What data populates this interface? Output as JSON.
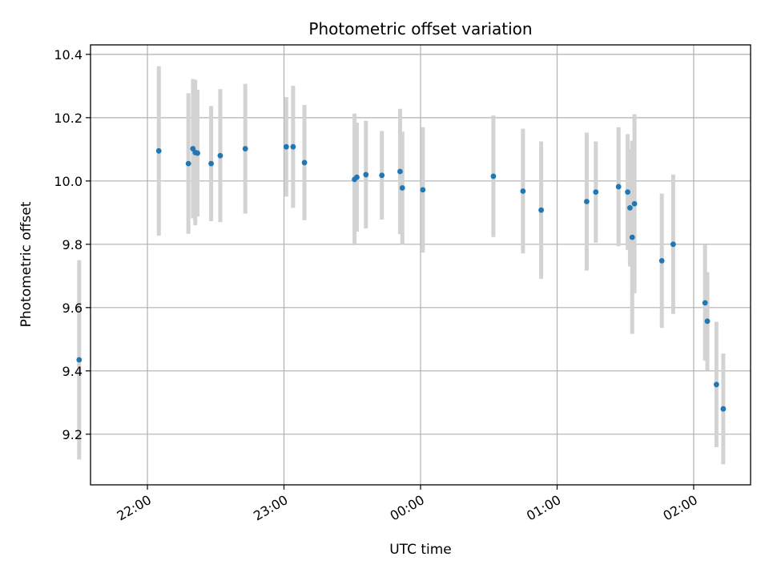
{
  "chart_data": {
    "type": "scatter",
    "title": "Photometric offset variation",
    "xlabel": "UTC time",
    "ylabel": "Photometric offset",
    "x_tick_labels": [
      "22:00",
      "23:00",
      "00:00",
      "01:00",
      "02:00"
    ],
    "y_tick_labels": [
      "9.2",
      "9.4",
      "9.6",
      "9.8",
      "10.0",
      "10.2",
      "10.4"
    ],
    "x_ticks": [
      "22:00",
      "23:00",
      "00:00",
      "01:00",
      "02:00"
    ],
    "y_ticks": [
      9.2,
      9.4,
      9.6,
      9.8,
      10.0,
      10.2,
      10.4
    ],
    "xlim": [
      "21:35",
      "02:25"
    ],
    "ylim": [
      9.04,
      10.43
    ],
    "grid": true,
    "marker_color": "#1f77b4",
    "errorbar_color": "#d3d3d3",
    "points": [
      {
        "x": "21:30",
        "y": 9.435,
        "yerr": 0.315
      },
      {
        "x": "22:05",
        "y": 10.095,
        "yerr": 0.268
      },
      {
        "x": "22:18",
        "y": 10.055,
        "yerr": 0.222
      },
      {
        "x": "22:20",
        "y": 10.102,
        "yerr": 0.22
      },
      {
        "x": "22:21",
        "y": 10.09,
        "yerr": 0.23
      },
      {
        "x": "22:22",
        "y": 10.088,
        "yerr": 0.2
      },
      {
        "x": "22:28",
        "y": 10.055,
        "yerr": 0.182
      },
      {
        "x": "22:32",
        "y": 10.08,
        "yerr": 0.21
      },
      {
        "x": "22:43",
        "y": 10.102,
        "yerr": 0.205
      },
      {
        "x": "23:01",
        "y": 10.108,
        "yerr": 0.157
      },
      {
        "x": "23:04",
        "y": 10.108,
        "yerr": 0.193
      },
      {
        "x": "23:09",
        "y": 10.058,
        "yerr": 0.182
      },
      {
        "x": "23:31",
        "y": 10.005,
        "yerr": 0.208
      },
      {
        "x": "23:32",
        "y": 10.012,
        "yerr": 0.172
      },
      {
        "x": "23:36",
        "y": 10.02,
        "yerr": 0.17
      },
      {
        "x": "23:43",
        "y": 10.018,
        "yerr": 0.14
      },
      {
        "x": "23:51",
        "y": 10.03,
        "yerr": 0.198
      },
      {
        "x": "23:52",
        "y": 9.978,
        "yerr": 0.178
      },
      {
        "x": "00:01",
        "y": 9.972,
        "yerr": 0.198
      },
      {
        "x": "00:32",
        "y": 10.015,
        "yerr": 0.192
      },
      {
        "x": "00:45",
        "y": 9.968,
        "yerr": 0.197
      },
      {
        "x": "00:53",
        "y": 9.908,
        "yerr": 0.217
      },
      {
        "x": "01:13",
        "y": 9.935,
        "yerr": 0.218
      },
      {
        "x": "01:17",
        "y": 9.965,
        "yerr": 0.16
      },
      {
        "x": "01:27",
        "y": 9.982,
        "yerr": 0.188
      },
      {
        "x": "01:31",
        "y": 9.965,
        "yerr": 0.183
      },
      {
        "x": "01:32",
        "y": 9.915,
        "yerr": 0.185
      },
      {
        "x": "01:33",
        "y": 9.822,
        "yerr": 0.305
      },
      {
        "x": "01:34",
        "y": 9.928,
        "yerr": 0.283
      },
      {
        "x": "01:46",
        "y": 9.748,
        "yerr": 0.212
      },
      {
        "x": "01:51",
        "y": 9.8,
        "yerr": 0.22
      },
      {
        "x": "02:05",
        "y": 9.615,
        "yerr": 0.183
      },
      {
        "x": "02:06",
        "y": 9.557,
        "yerr": 0.155
      },
      {
        "x": "02:10",
        "y": 9.357,
        "yerr": 0.198
      },
      {
        "x": "02:13",
        "y": 9.28,
        "yerr": 0.175
      }
    ]
  }
}
